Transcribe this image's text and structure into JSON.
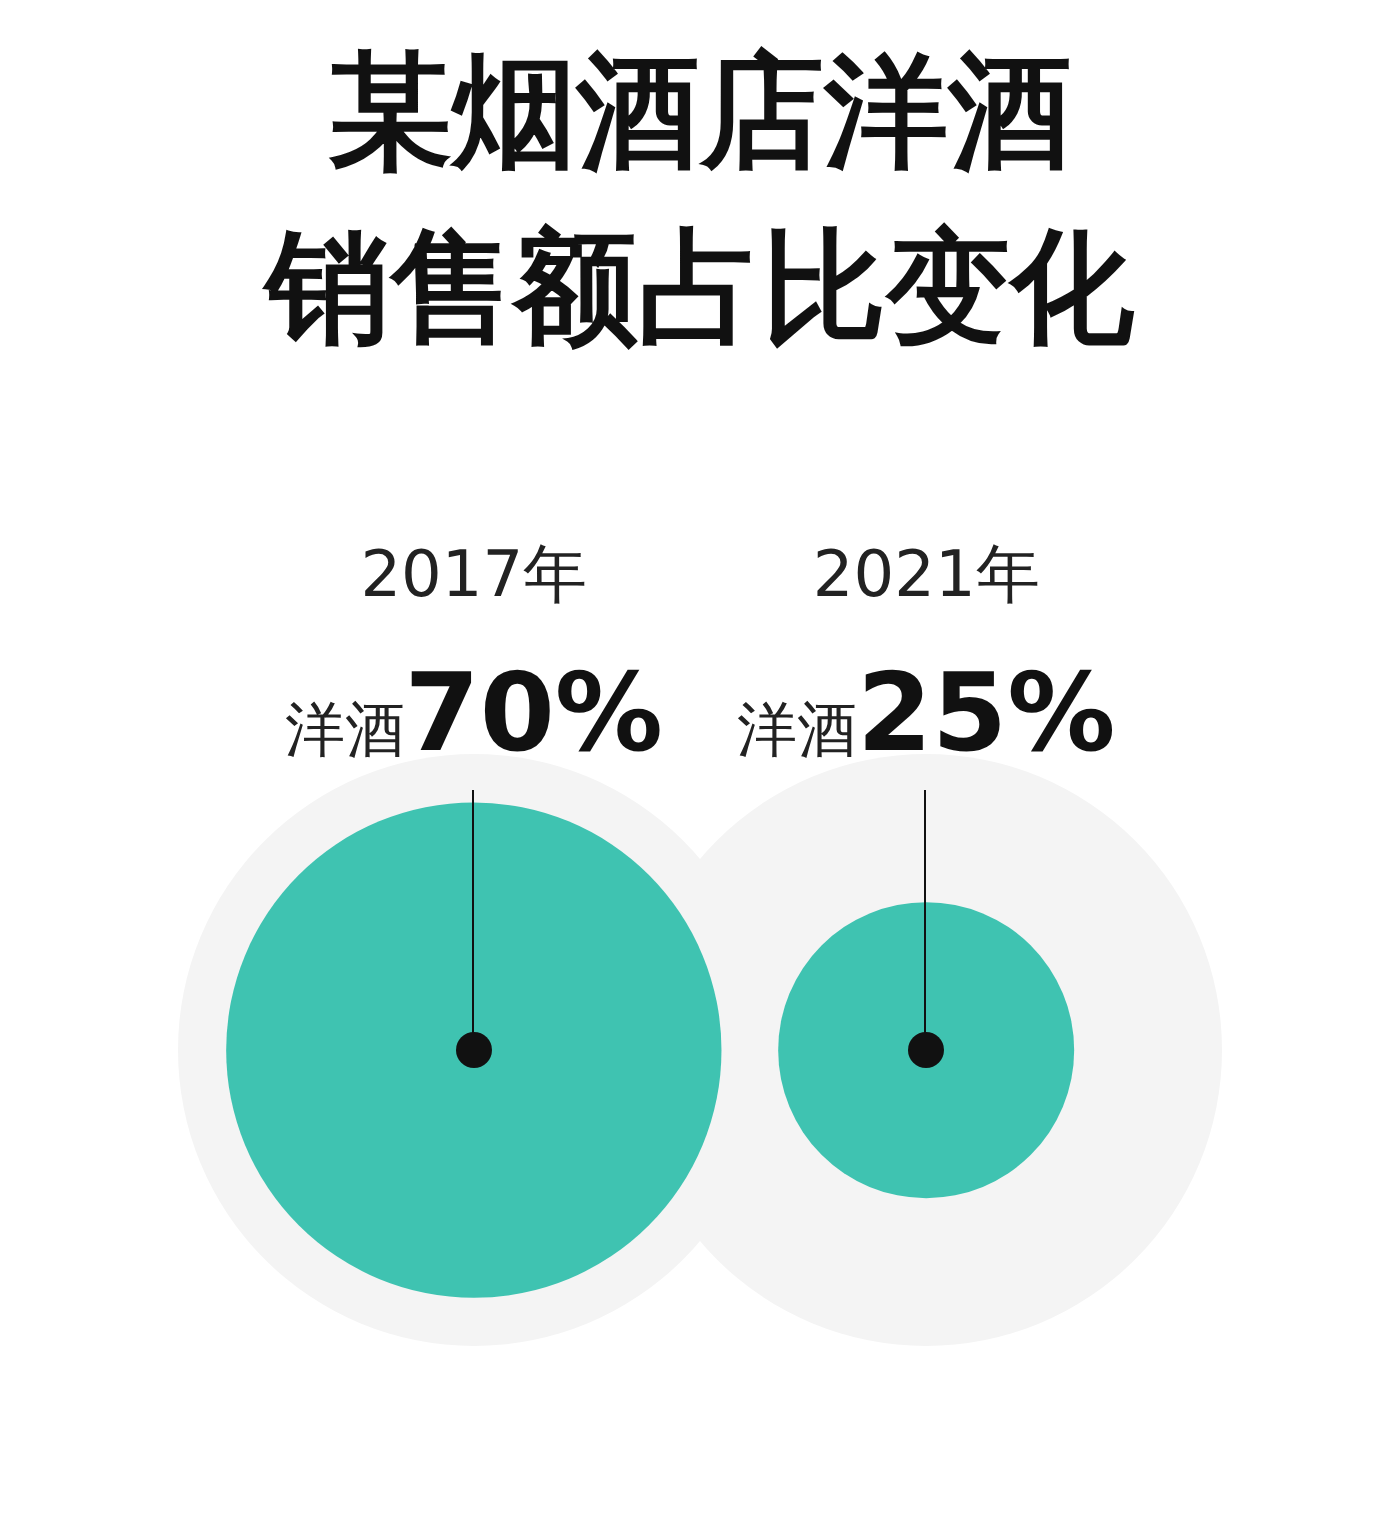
{
  "chart_data": {
    "type": "other",
    "title": "某烟酒店洋酒销售额占比变化",
    "categories": [
      "2017年",
      "2021年"
    ],
    "series": [
      {
        "color": "#3fc3b1",
        "values": [
          70,
          25
        ],
        "value_labels": [
          "洋酒70%",
          "洋酒25%"
        ]
      }
    ],
    "legend": false
  }
}
